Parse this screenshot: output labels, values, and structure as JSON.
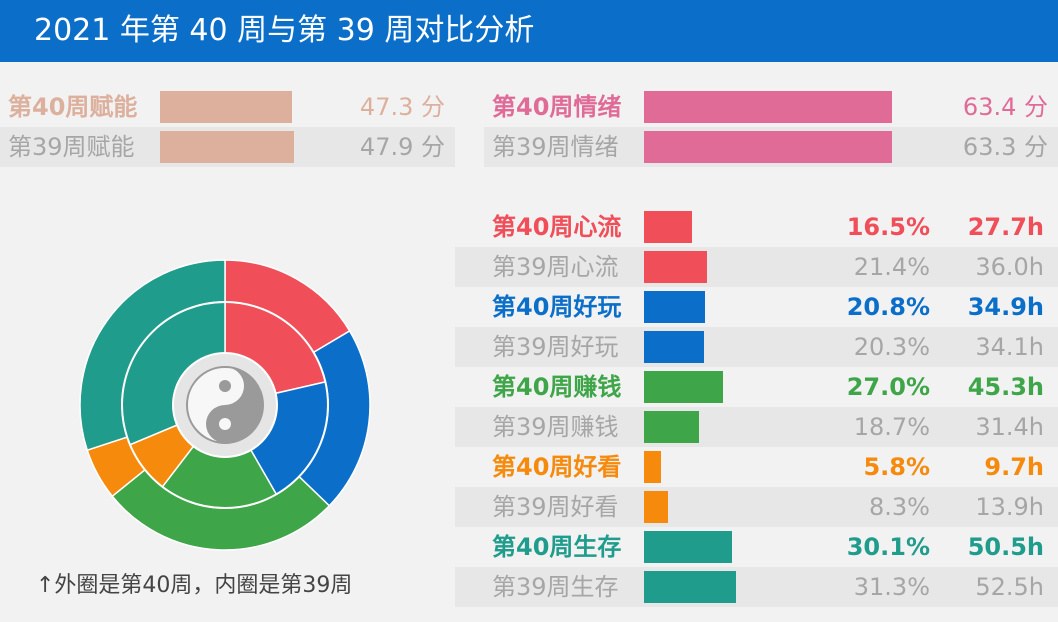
{
  "title": "2021 年第 40 周与第 39 周对比分析",
  "score_rows": [
    {
      "label": "第40周赋能",
      "value": "47.3 分",
      "score": 47.3,
      "color": "#dcb09d",
      "current": true
    },
    {
      "label": "第39周赋能",
      "value": "47.9 分",
      "score": 47.9,
      "color": "#dcb09d",
      "current": false
    },
    {
      "label": "第40周情绪",
      "value": "63.4 分",
      "score": 63.4,
      "color": "#e06b97",
      "current": true
    },
    {
      "label": "第39周情绪",
      "value": "63.3 分",
      "score": 63.3,
      "color": "#e06b97",
      "current": false
    }
  ],
  "category_rows": [
    {
      "label": "第40周心流",
      "pct": "16.5%",
      "hours": "27.7h",
      "color": "#f04e58",
      "current": true
    },
    {
      "label": "第39周心流",
      "pct": "21.4%",
      "hours": "36.0h",
      "color": "#f04e58",
      "current": false
    },
    {
      "label": "第40周好玩",
      "pct": "20.8%",
      "hours": "34.9h",
      "color": "#0b6fc9",
      "current": true
    },
    {
      "label": "第39周好玩",
      "pct": "20.3%",
      "hours": "34.1h",
      "color": "#0b6fc9",
      "current": false
    },
    {
      "label": "第40周赚钱",
      "pct": "27.0%",
      "hours": "45.3h",
      "color": "#3ea548",
      "current": true
    },
    {
      "label": "第39周赚钱",
      "pct": "18.7%",
      "hours": "31.4h",
      "color": "#3ea548",
      "current": false
    },
    {
      "label": "第40周好看",
      "pct": "5.8%",
      "hours": "9.7h",
      "color": "#f58a0c",
      "current": true
    },
    {
      "label": "第39周好看",
      "pct": "8.3%",
      "hours": "13.9h",
      "color": "#f58a0c",
      "current": false
    },
    {
      "label": "第40周生存",
      "pct": "30.1%",
      "hours": "50.5h",
      "color": "#1f9c8c",
      "current": true
    },
    {
      "label": "第39周生存",
      "pct": "31.3%",
      "hours": "52.5h",
      "color": "#1f9c8c",
      "current": false
    }
  ],
  "caption": "↑外圈是第40周，内圈是第39周",
  "center_icon": "yin-yang-icon",
  "chart_data": {
    "type": "pie",
    "categories": [
      "心流",
      "好玩",
      "赚钱",
      "好看",
      "生存"
    ],
    "colors": [
      "#f04e58",
      "#0b6fc9",
      "#3ea548",
      "#f58a0c",
      "#1f9c8c"
    ],
    "series": [
      {
        "name": "第40周",
        "values": [
          16.5,
          20.8,
          27.0,
          5.8,
          30.1
        ]
      },
      {
        "name": "第39周",
        "values": [
          21.4,
          20.3,
          18.7,
          8.3,
          31.3
        ]
      }
    ],
    "hours": [
      [
        27.7,
        34.9,
        45.3,
        9.7,
        50.5
      ],
      [
        36.0,
        34.1,
        31.4,
        13.9,
        52.5
      ]
    ],
    "scores": {
      "赋能": [
        47.3,
        47.9
      ],
      "情绪": [
        63.4,
        63.3
      ]
    },
    "unit_pct": "%",
    "unit_hours": "h"
  }
}
